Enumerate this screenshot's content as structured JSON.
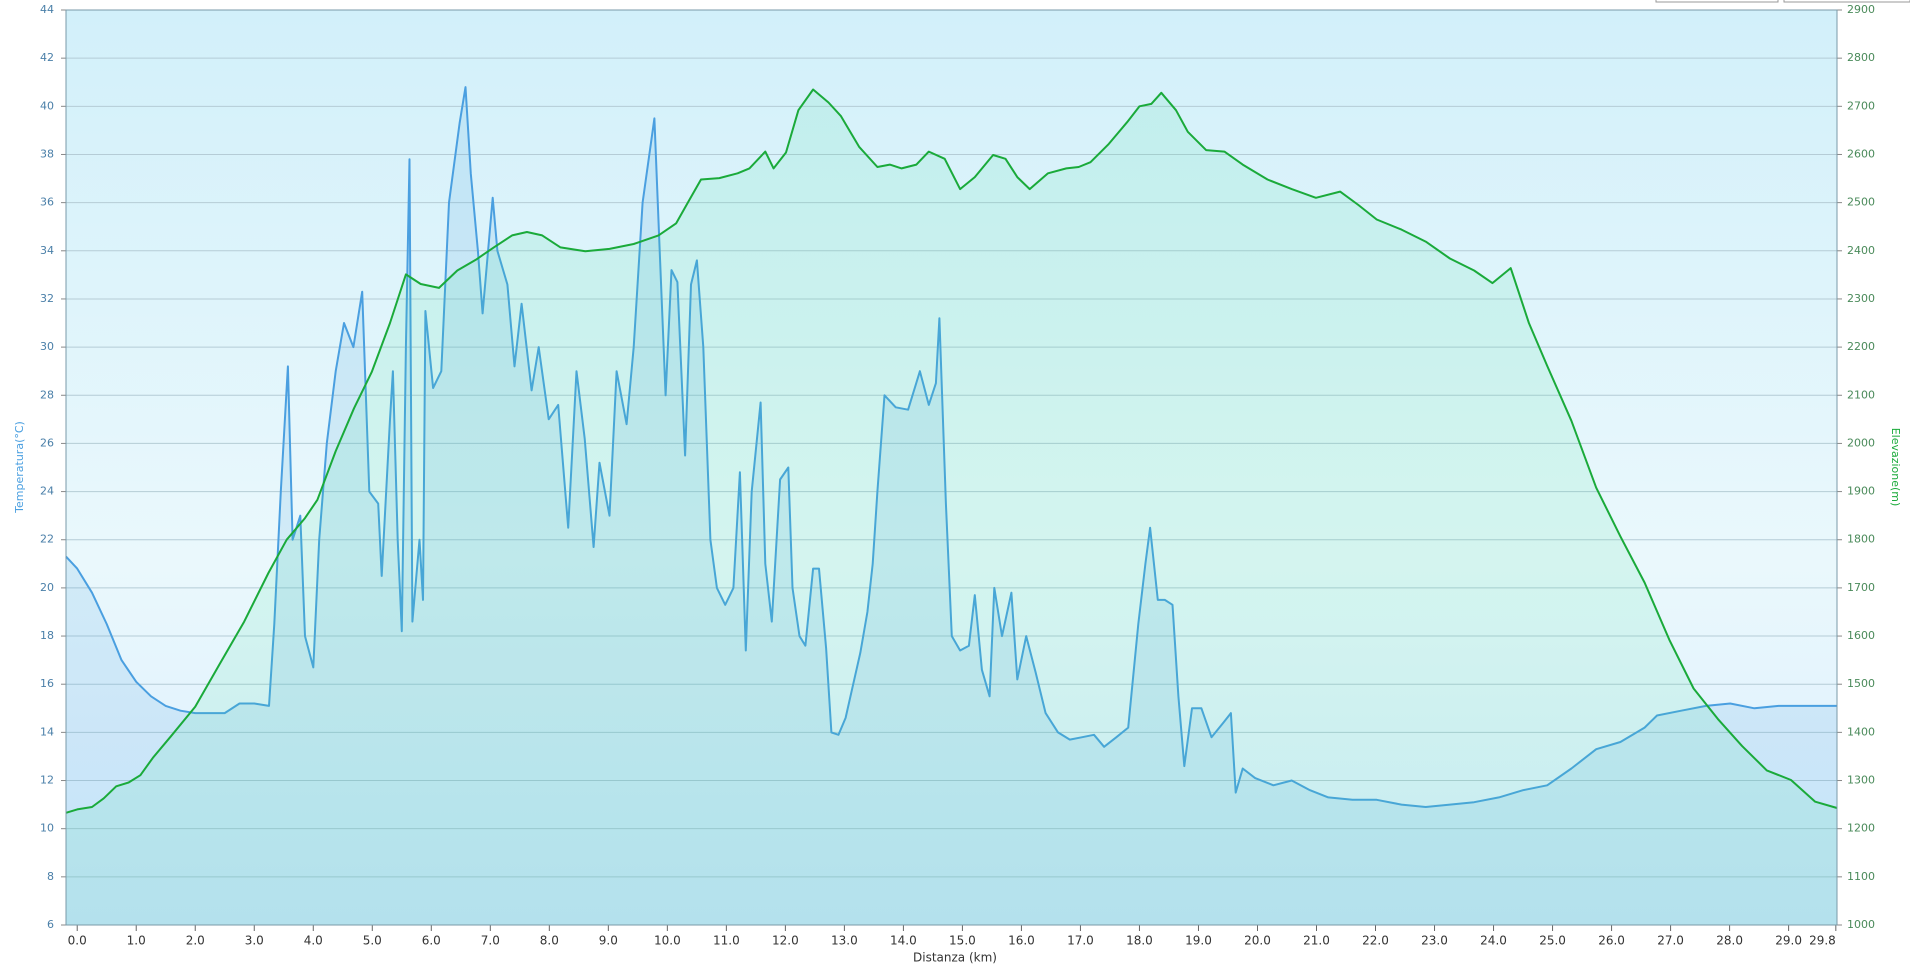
{
  "chart_data": {
    "type": "line",
    "x_label": "Distanza  (km)",
    "y_label": "Temperatura(°C)",
    "y2_label": "Elevazione(m)",
    "xlim": [
      -0.19,
      29.82
    ],
    "xticks": [
      {
        "value": 0,
        "label": "0.0"
      },
      {
        "value": 1,
        "label": "1.0"
      },
      {
        "value": 2,
        "label": "2.0"
      },
      {
        "value": 3,
        "label": "3.0"
      },
      {
        "value": 4,
        "label": "4.0"
      },
      {
        "value": 5,
        "label": "5.0"
      },
      {
        "value": 6,
        "label": "6.0"
      },
      {
        "value": 7,
        "label": "7.0"
      },
      {
        "value": 8,
        "label": "8.0"
      },
      {
        "value": 9,
        "label": "9.0"
      },
      {
        "value": 10,
        "label": "10.0"
      },
      {
        "value": 11,
        "label": "11.0"
      },
      {
        "value": 12,
        "label": "12.0"
      },
      {
        "value": 13,
        "label": "13.0"
      },
      {
        "value": 14,
        "label": "14.0"
      },
      {
        "value": 15,
        "label": "15.0"
      },
      {
        "value": 16,
        "label": "16.0"
      },
      {
        "value": 17,
        "label": "17.0"
      },
      {
        "value": 18,
        "label": "18.0"
      },
      {
        "value": 19,
        "label": "19.0"
      },
      {
        "value": 20,
        "label": "20.0"
      },
      {
        "value": 21,
        "label": "21.0"
      },
      {
        "value": 22,
        "label": "22.0"
      },
      {
        "value": 23,
        "label": "23.0"
      },
      {
        "value": 24,
        "label": "24.0"
      },
      {
        "value": 25,
        "label": "25.0"
      },
      {
        "value": 26,
        "label": "26.0"
      },
      {
        "value": 27,
        "label": "27.0"
      },
      {
        "value": 28,
        "label": "28.0"
      },
      {
        "value": 29,
        "label": "29.0"
      },
      29.8
    ],
    "ylim": [
      6,
      44
    ],
    "yticks": [
      6,
      8,
      10,
      12,
      14,
      16,
      18,
      20,
      22,
      24,
      26,
      28,
      30,
      32,
      34,
      36,
      38,
      40,
      42,
      44
    ],
    "y2lim": [
      1000,
      2900
    ],
    "y2ticks": [
      1000,
      1100,
      1200,
      1300,
      1400,
      1500,
      1600,
      1700,
      1800,
      1900,
      2000,
      2100,
      2200,
      2300,
      2400,
      2500,
      2600,
      2700,
      2800,
      2900
    ],
    "grid": true,
    "series": [
      {
        "color": "#4a9fe0",
        "axis": "y",
        "x": [
          -0.19,
          0,
          0.25,
          0.5,
          0.75,
          1,
          1.25,
          1.5,
          1.75,
          2,
          2.25,
          2.5,
          2.75,
          3,
          3.25,
          3.34,
          3.45,
          3.57,
          3.65,
          3.78,
          3.86,
          4.0,
          4.1,
          4.23,
          4.38,
          4.52,
          4.68,
          4.83,
          4.95,
          5.1,
          5.16,
          5.3,
          5.35,
          5.43,
          5.5,
          5.57,
          5.63,
          5.68,
          5.8,
          5.86,
          5.9,
          6.03,
          6.17,
          6.3,
          6.48,
          6.58,
          6.67,
          6.79,
          6.87,
          7.04,
          7.12,
          7.29,
          7.41,
          7.53,
          7.7,
          7.82,
          7.99,
          8.15,
          8.32,
          8.46,
          8.6,
          8.75,
          8.85,
          9.02,
          9.14,
          9.31,
          9.43,
          9.58,
          9.78,
          9.87,
          9.97,
          10.07,
          10.17,
          10.3,
          10.4,
          10.5,
          10.61,
          10.73,
          10.84,
          10.98,
          11.12,
          11.23,
          11.33,
          11.43,
          11.58,
          11.66,
          11.77,
          11.91,
          12.05,
          12.12,
          12.24,
          12.34,
          12.47,
          12.57,
          12.69,
          12.78,
          12.9,
          13.02,
          13.15,
          13.27,
          13.39,
          13.48,
          13.56,
          13.68,
          13.87,
          14.08,
          14.28,
          14.43,
          14.55,
          14.61,
          14.72,
          14.82,
          14.96,
          15.11,
          15.21,
          15.33,
          15.46,
          15.54,
          15.67,
          15.83,
          15.93,
          16.08,
          16.24,
          16.41,
          16.62,
          16.82,
          17.03,
          17.23,
          17.4,
          17.61,
          17.81,
          17.98,
          18.1,
          18.18,
          18.31,
          18.43,
          18.56,
          18.66,
          18.76,
          18.89,
          19.05,
          19.22,
          19.42,
          19.55,
          19.63,
          19.75,
          19.96,
          20.27,
          20.58,
          20.89,
          21.2,
          21.61,
          22.02,
          22.44,
          22.85,
          23.26,
          23.67,
          24.09,
          24.5,
          24.91,
          25.32,
          25.74,
          26.15,
          26.56,
          26.77,
          27.18,
          27.6,
          28.01,
          28.42,
          28.83,
          29.25,
          29.82
        ],
        "values": [
          21.3,
          20.8,
          19.8,
          18.5,
          17,
          16.1,
          15.5,
          15.1,
          14.9,
          14.8,
          14.8,
          14.8,
          15.2,
          15.2,
          15.1,
          18.5,
          24,
          29.2,
          22,
          23,
          18,
          16.7,
          22,
          26,
          29,
          31,
          30,
          32.3,
          24,
          23.5,
          20.5,
          27,
          29,
          22,
          18.2,
          30,
          37.8,
          18.6,
          22,
          19.5,
          31.5,
          28.3,
          29,
          36,
          39.3,
          40.8,
          37.2,
          34,
          31.4,
          36.2,
          34,
          32.6,
          29.2,
          31.8,
          28.2,
          30,
          27,
          27.6,
          22.5,
          29,
          26.2,
          21.7,
          25.2,
          23,
          29,
          26.8,
          30,
          36,
          39.5,
          34,
          28,
          33.2,
          32.7,
          25.5,
          32.6,
          33.6,
          30,
          22,
          20,
          19.3,
          20,
          24.8,
          17.4,
          24,
          27.7,
          21,
          18.6,
          24.5,
          25,
          20,
          18,
          17.6,
          20.8,
          20.8,
          17.5,
          14,
          13.9,
          14.6,
          16,
          17.3,
          19,
          21,
          24,
          28,
          27.5,
          27.4,
          29,
          27.6,
          28.5,
          31.2,
          23.5,
          18,
          17.4,
          17.6,
          19.7,
          16.6,
          15.5,
          20,
          18,
          19.8,
          16.2,
          18,
          16.5,
          14.8,
          14,
          13.7,
          13.8,
          13.9,
          13.4,
          13.8,
          14.2,
          18.5,
          21,
          22.5,
          19.5,
          19.5,
          19.3,
          15.5,
          12.6,
          15,
          15,
          13.8,
          14.4,
          14.8,
          11.5,
          12.5,
          12.1,
          11.8,
          12,
          11.6,
          11.3,
          11.2,
          11.2,
          11.0,
          10.9,
          11.0,
          11.1,
          11.3,
          11.6,
          11.8,
          12.5,
          13.3,
          13.6,
          14.2,
          14.7,
          14.9,
          15.1,
          15.2,
          15.0,
          15.1,
          15.1,
          15.1
        ]
      },
      {
        "color": "#1aaa3a",
        "axis": "y2",
        "x": [
          -0.19,
          0,
          0.25,
          0.45,
          0.66,
          0.87,
          1.07,
          1.28,
          1.59,
          2.0,
          2.41,
          2.83,
          3.24,
          3.55,
          3.86,
          4.07,
          4.38,
          4.69,
          4.99,
          5.3,
          5.57,
          5.82,
          6.13,
          6.44,
          6.75,
          7.06,
          7.37,
          7.62,
          7.88,
          8.19,
          8.61,
          9.02,
          9.43,
          9.85,
          10.15,
          10.36,
          10.57,
          10.88,
          11.19,
          11.39,
          11.66,
          11.8,
          12.01,
          12.22,
          12.47,
          12.73,
          12.94,
          13.25,
          13.56,
          13.77,
          13.97,
          14.22,
          14.43,
          14.7,
          14.96,
          15.21,
          15.52,
          15.73,
          15.93,
          16.14,
          16.45,
          16.76,
          16.97,
          17.17,
          17.48,
          17.79,
          18.0,
          18.2,
          18.37,
          18.62,
          18.82,
          19.13,
          19.44,
          19.75,
          20.17,
          20.58,
          20.99,
          21.4,
          21.71,
          22.02,
          22.44,
          22.85,
          23.26,
          23.67,
          23.98,
          24.29,
          24.6,
          24.91,
          25.32,
          25.74,
          26.15,
          26.56,
          26.98,
          27.39,
          27.8,
          28.21,
          28.63,
          29.04,
          29.45,
          29.82
        ],
        "values": [
          1233,
          1240,
          1245,
          1263,
          1288,
          1296,
          1311,
          1347,
          1392,
          1453,
          1541,
          1630,
          1731,
          1800,
          1845,
          1883,
          1984,
          2073,
          2148,
          2250,
          2351,
          2331,
          2323,
          2359,
          2381,
          2407,
          2432,
          2439,
          2432,
          2407,
          2399,
          2404,
          2414,
          2432,
          2457,
          2503,
          2548,
          2551,
          2561,
          2571,
          2606,
          2571,
          2604,
          2692,
          2735,
          2708,
          2680,
          2616,
          2574,
          2579,
          2571,
          2579,
          2606,
          2591,
          2528,
          2553,
          2599,
          2591,
          2553,
          2528,
          2561,
          2571,
          2574,
          2584,
          2622,
          2667,
          2700,
          2705,
          2728,
          2692,
          2647,
          2609,
          2606,
          2579,
          2548,
          2528,
          2510,
          2523,
          2495,
          2465,
          2444,
          2419,
          2384,
          2359,
          2333,
          2364,
          2250,
          2161,
          2047,
          1908,
          1807,
          1711,
          1592,
          1491,
          1428,
          1372,
          1321,
          1301,
          1256,
          1243
        ]
      }
    ]
  }
}
